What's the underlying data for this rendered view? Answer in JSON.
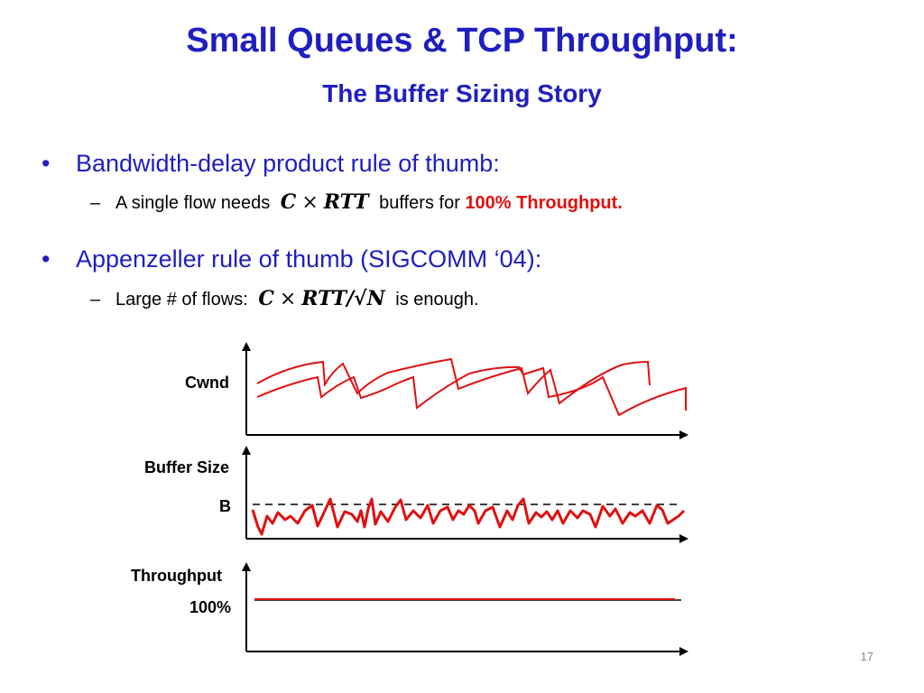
{
  "slide": {
    "title": "Small Queues & TCP Throughput:",
    "subtitle": "The Buffer Sizing Story",
    "page_number": "17"
  },
  "bullets": [
    {
      "text": "Bandwidth-delay product rule of thumb:",
      "sub": {
        "before": "A single flow needs",
        "math_c": "C",
        "math_times": "×",
        "math_rtt": "RTT",
        "after": "buffers for",
        "highlight": "100% Throughput."
      }
    },
    {
      "text": "Appenzeller rule of thumb (SIGCOMM ‘04):",
      "sub": {
        "before": "Large # of flows:",
        "math_c": "C",
        "math_times": "×",
        "math_rtt": "RTT/√N",
        "after": "is enough."
      }
    }
  ],
  "diagram": {
    "cwnd_label": "Cwnd",
    "buffer_label": "Buffer Size",
    "b_label": "B",
    "throughput_label": "Throughput",
    "throughput_value": "100%",
    "line_color": "#e01010"
  }
}
